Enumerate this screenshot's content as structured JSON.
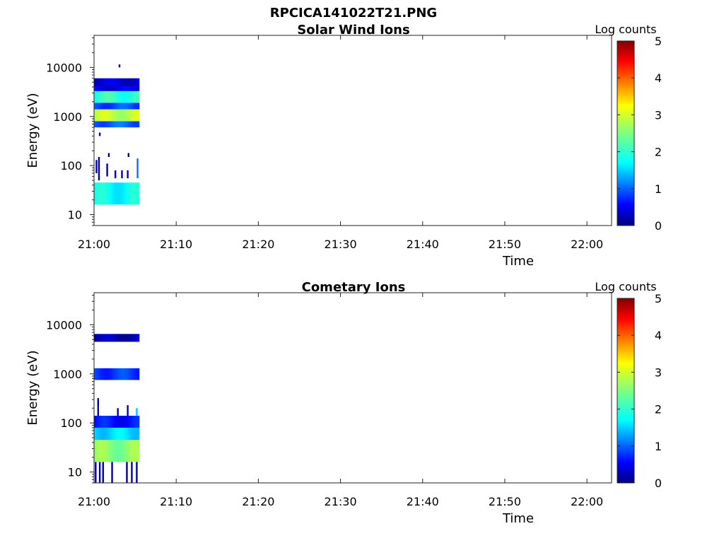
{
  "figure_title": "RPCICA141022T21.PNG",
  "chart_data": [
    {
      "type": "heatmap",
      "title": "Solar Wind Ions",
      "xlabel": "Time",
      "ylabel": "Energy (eV)",
      "yscale": "log",
      "ylim": [
        6,
        45000
      ],
      "xlim": [
        "21:00",
        "22:03"
      ],
      "x_ticks": [
        "21:00",
        "21:10",
        "21:20",
        "21:30",
        "21:40",
        "21:50",
        "22:00"
      ],
      "y_ticks": [
        10,
        100,
        1000,
        10000
      ],
      "y_tick_labels": [
        "10",
        "100",
        "1000",
        "10000"
      ],
      "colorbar": {
        "label": "Log counts",
        "range": [
          0,
          5
        ],
        "ticks": [
          "0",
          "1",
          "2",
          "3",
          "4",
          "5"
        ],
        "colormap": "jet"
      },
      "bands": [
        {
          "e_low": 16,
          "e_high": 45,
          "level": 1.9,
          "t_start": "21:00",
          "t_end": "21:05.5"
        },
        {
          "e_low": 600,
          "e_high": 800,
          "level": 1.1,
          "t_start": "21:00",
          "t_end": "21:05.5"
        },
        {
          "e_low": 800,
          "e_high": 1400,
          "level": 2.8,
          "t_start": "21:00",
          "t_end": "21:05.5"
        },
        {
          "e_low": 1400,
          "e_high": 1900,
          "level": 1.0,
          "t_start": "21:00",
          "t_end": "21:05.5"
        },
        {
          "e_low": 1900,
          "e_high": 3300,
          "level": 2.1,
          "t_start": "21:00",
          "t_end": "21:05.5"
        },
        {
          "e_low": 3300,
          "e_high": 4200,
          "level": 0.5,
          "t_start": "21:00",
          "t_end": "21:05.5"
        },
        {
          "e_low": 4200,
          "e_high": 6000,
          "level": 0.4,
          "t_start": "21:00",
          "t_end": "21:05.5"
        }
      ],
      "spikes": [
        {
          "time": "21:00.3",
          "e_low": 70,
          "e_high": 130,
          "level": 0.3
        },
        {
          "time": "21:00.6",
          "e_low": 50,
          "e_high": 150,
          "level": 0.3
        },
        {
          "time": "21:01.6",
          "e_low": 60,
          "e_high": 110,
          "level": 0.3
        },
        {
          "time": "21:01.8",
          "e_low": 150,
          "e_high": 180,
          "level": 0.2
        },
        {
          "time": "21:02.6",
          "e_low": 55,
          "e_high": 80,
          "level": 0.3
        },
        {
          "time": "21:03.4",
          "e_low": 55,
          "e_high": 80,
          "level": 0.3
        },
        {
          "time": "21:04.1",
          "e_low": 55,
          "e_high": 80,
          "level": 0.3
        },
        {
          "time": "21:04.2",
          "e_low": 150,
          "e_high": 180,
          "level": 0.2
        },
        {
          "time": "21:05.3",
          "e_low": 55,
          "e_high": 140,
          "level": 1.2
        },
        {
          "time": "21:03.1",
          "e_low": 10000,
          "e_high": 11500,
          "level": 0.2
        },
        {
          "time": "21:00.7",
          "e_low": 400,
          "e_high": 470,
          "level": 0.3
        }
      ]
    },
    {
      "type": "heatmap",
      "title": "Cometary Ions",
      "xlabel": "Time",
      "ylabel": "Energy (eV)",
      "yscale": "log",
      "ylim": [
        6,
        45000
      ],
      "xlim": [
        "21:00",
        "22:03"
      ],
      "x_ticks": [
        "21:00",
        "21:10",
        "21:20",
        "21:30",
        "21:40",
        "21:50",
        "22:00"
      ],
      "y_ticks": [
        10,
        100,
        1000,
        10000
      ],
      "y_tick_labels": [
        "10",
        "100",
        "1000",
        "10000"
      ],
      "colorbar": {
        "label": "Log counts",
        "range": [
          0,
          5
        ],
        "ticks": [
          "0",
          "1",
          "2",
          "3",
          "4",
          "5"
        ],
        "colormap": "jet"
      },
      "bands": [
        {
          "e_low": 16,
          "e_high": 45,
          "level": 2.55,
          "t_start": "21:00",
          "t_end": "21:05.5"
        },
        {
          "e_low": 45,
          "e_high": 80,
          "level": 1.7,
          "t_start": "21:00",
          "t_end": "21:05.5"
        },
        {
          "e_low": 80,
          "e_high": 140,
          "level": 0.7,
          "t_start": "21:00",
          "t_end": "21:05.5"
        },
        {
          "e_low": 750,
          "e_high": 1300,
          "level": 0.9,
          "t_start": "21:00",
          "t_end": "21:05.5"
        },
        {
          "e_low": 4500,
          "e_high": 6500,
          "level": 0.25,
          "t_start": "21:00",
          "t_end": "21:05.5"
        }
      ],
      "spikes": [
        {
          "time": "21:00.2",
          "e_low": 6,
          "e_high": 16,
          "level": 0.2
        },
        {
          "time": "21:00.7",
          "e_low": 6,
          "e_high": 16,
          "level": 0.2
        },
        {
          "time": "21:01.1",
          "e_low": 6,
          "e_high": 16,
          "level": 0.2
        },
        {
          "time": "21:02.2",
          "e_low": 6,
          "e_high": 16,
          "level": 0.2
        },
        {
          "time": "21:04.0",
          "e_low": 6,
          "e_high": 16,
          "level": 0.2
        },
        {
          "time": "21:04.6",
          "e_low": 6,
          "e_high": 16,
          "level": 0.2
        },
        {
          "time": "21:05.2",
          "e_low": 6,
          "e_high": 16,
          "level": 0.2
        },
        {
          "time": "21:00.5",
          "e_low": 140,
          "e_high": 210,
          "level": 0.3
        },
        {
          "time": "21:00.5",
          "e_low": 210,
          "e_high": 320,
          "level": 0.2
        },
        {
          "time": "21:02.9",
          "e_low": 140,
          "e_high": 200,
          "level": 0.3
        },
        {
          "time": "21:04.1",
          "e_low": 140,
          "e_high": 230,
          "level": 0.3
        },
        {
          "time": "21:05.2",
          "e_low": 140,
          "e_high": 200,
          "level": 1.6
        }
      ]
    }
  ]
}
